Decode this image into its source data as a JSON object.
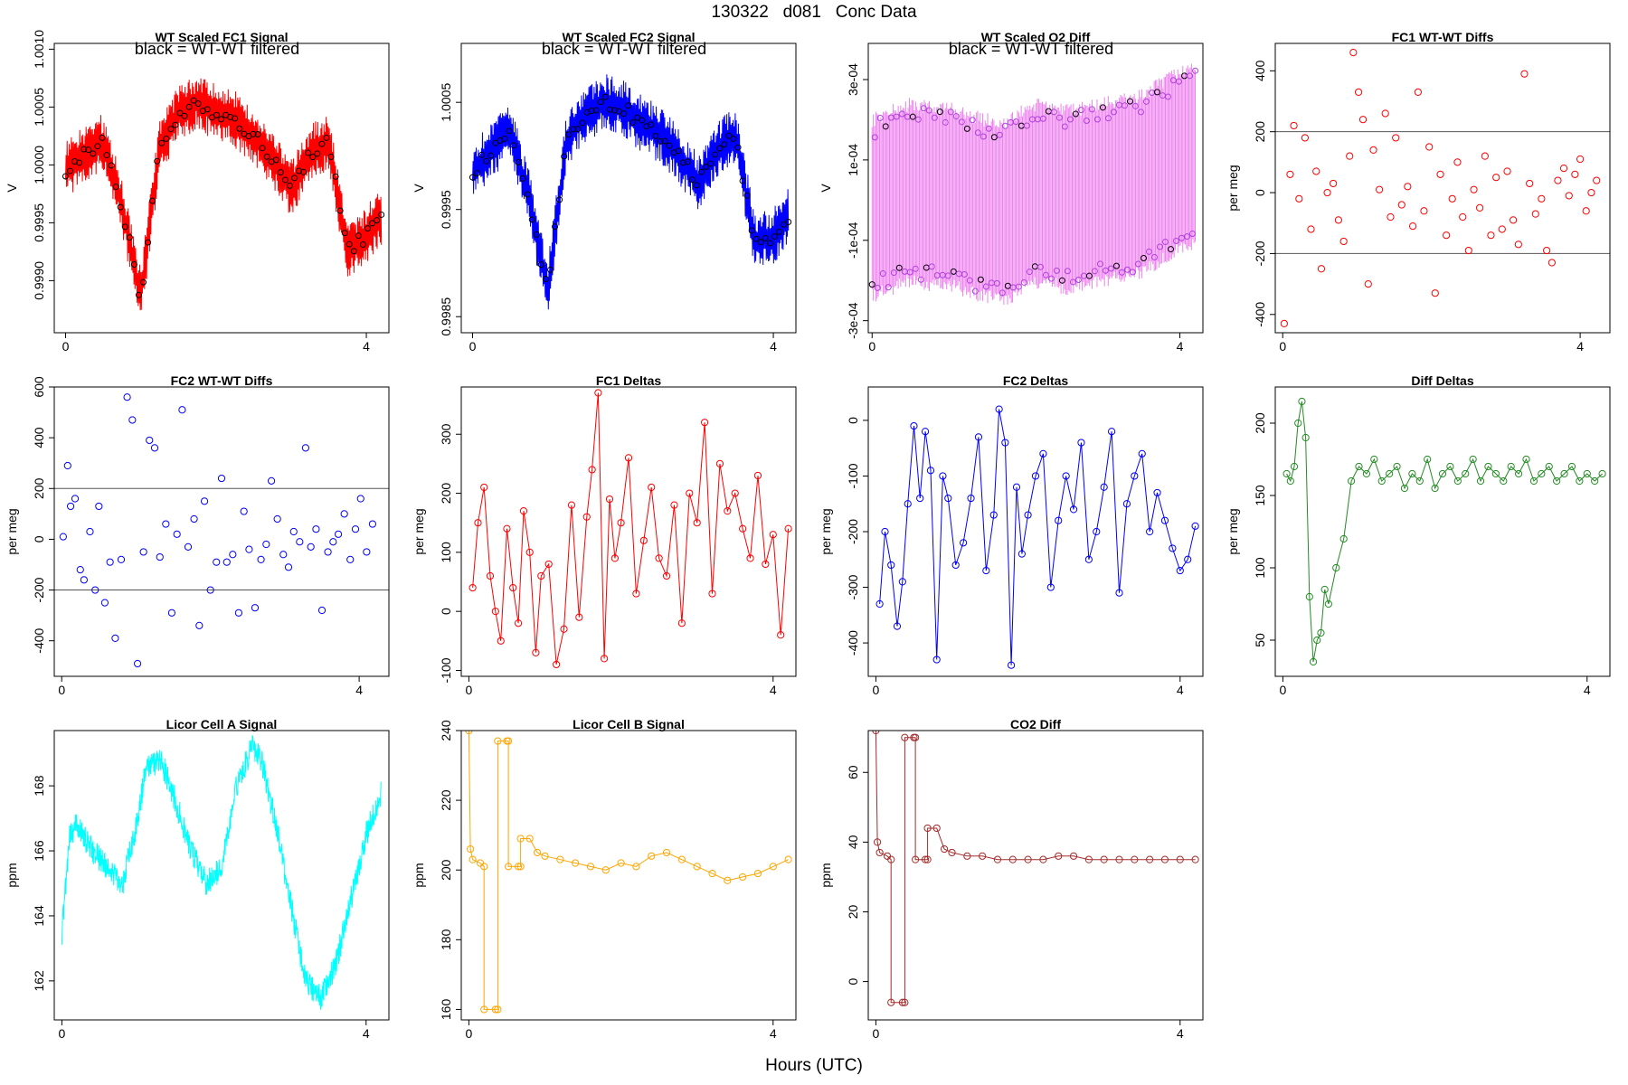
{
  "figure": {
    "title": "130322   d081   Conc Data",
    "xlabel": "Hours (UTC)"
  },
  "chart_data": [
    {
      "id": "p1",
      "type": "line",
      "title": "WT Scaled FC1 Signal",
      "note": "black = WT-WT filtered",
      "ylabel": "V",
      "color": "#ff0000",
      "style": "trace-points",
      "xlim": [
        -0.15,
        4.3
      ],
      "ylim": [
        0.99855,
        1.00105
      ],
      "xticks": [
        0,
        4
      ],
      "yticks": [
        0.999,
        0.9995,
        1.0,
        1.0005,
        1.001
      ],
      "ytick_labels": [
        "0.9990",
        "0.9995",
        "1.0000",
        "1.0005",
        "1.0010"
      ],
      "hlines": [],
      "x": [
        0,
        0.25,
        0.5,
        0.75,
        1.0,
        1.25,
        1.5,
        1.75,
        2.0,
        2.25,
        2.5,
        2.75,
        3.0,
        3.25,
        3.5,
        3.75,
        4.0,
        4.2
      ],
      "y": [
        0.99995,
        1.0001,
        1.0002,
        0.99965,
        0.99885,
        1.00015,
        1.00045,
        1.00055,
        1.00045,
        1.0004,
        1.00025,
        1.00005,
        0.9998,
        1.0001,
        1.0002,
        0.99925,
        0.9994,
        0.99955
      ]
    },
    {
      "id": "p2",
      "type": "line",
      "title": "WT Scaled FC2 Signal",
      "note": "black = WT-WT filtered",
      "ylabel": "V",
      "color": "#0000ff",
      "style": "trace-points",
      "xlim": [
        -0.15,
        4.3
      ],
      "ylim": [
        0.99835,
        1.00105
      ],
      "xticks": [
        0,
        4
      ],
      "yticks": [
        0.9985,
        0.9995,
        1.0005
      ],
      "ytick_labels": [
        "0.9985",
        "0.9995",
        "1.0005"
      ],
      "hlines": [],
      "x": [
        0,
        0.25,
        0.5,
        0.75,
        1.0,
        1.25,
        1.5,
        1.75,
        2.0,
        2.25,
        2.5,
        2.75,
        3.0,
        3.25,
        3.5,
        3.75,
        4.0,
        4.2
      ],
      "y": [
        0.99985,
        1.00005,
        1.00025,
        0.9996,
        0.99875,
        1.00015,
        1.0004,
        1.0005,
        1.00045,
        1.0003,
        1.0002,
        1.0,
        0.99975,
        1.00005,
        1.0002,
        0.9992,
        0.99925,
        0.99945
      ]
    },
    {
      "id": "p3",
      "type": "line",
      "title": "WT Scaled O2 Diff",
      "note": "black = WT-WT filtered",
      "ylabel": "V",
      "color": "#ee82ee",
      "style": "envelope",
      "xlim": [
        -0.05,
        4.3
      ],
      "ylim": [
        -0.00033,
        0.00039
      ],
      "xticks": [
        0,
        4
      ],
      "yticks": [
        -0.0003,
        -0.0001,
        0.0001,
        0.0003
      ],
      "ytick_labels": [
        "-3e-04",
        "-1e-04",
        "1e-04",
        "3e-04"
      ],
      "hlines": [],
      "x": [
        0,
        0.25,
        0.5,
        0.75,
        1.0,
        1.25,
        1.5,
        1.75,
        2.0,
        2.25,
        2.5,
        2.75,
        3.0,
        3.25,
        3.5,
        3.75,
        4.0,
        4.2
      ],
      "y": [
        -2e-05,
        0.0,
        2e-05,
        1e-05,
        1e-05,
        -1e-05,
        -2e-05,
        -3e-05,
        1e-05,
        2e-05,
        0.0,
        1e-05,
        2e-05,
        3e-05,
        4e-05,
        7e-05,
        0.0001,
        0.00011
      ]
    },
    {
      "id": "p4",
      "type": "scatter",
      "title": "FC1 WT-WT Diffs",
      "note": "",
      "ylabel": "per meg",
      "color": "#ff0000",
      "style": "points",
      "xlim": [
        -0.1,
        4.4
      ],
      "ylim": [
        -460,
        490
      ],
      "xticks": [
        0,
        4
      ],
      "yticks": [
        -400,
        -200,
        0,
        200,
        400
      ],
      "ytick_labels": [
        "-400",
        "-200",
        "0",
        "200",
        "400"
      ],
      "hlines": [
        200,
        -200
      ],
      "x": [
        0.02,
        0.1,
        0.15,
        0.22,
        0.3,
        0.38,
        0.45,
        0.52,
        0.6,
        0.68,
        0.75,
        0.82,
        0.9,
        0.95,
        1.02,
        1.08,
        1.15,
        1.22,
        1.3,
        1.38,
        1.45,
        1.52,
        1.6,
        1.68,
        1.75,
        1.82,
        1.9,
        1.97,
        2.05,
        2.12,
        2.2,
        2.28,
        2.35,
        2.42,
        2.5,
        2.57,
        2.65,
        2.72,
        2.8,
        2.87,
        2.95,
        3.02,
        3.1,
        3.17,
        3.25,
        3.32,
        3.4,
        3.48,
        3.55,
        3.62,
        3.7,
        3.78,
        3.85,
        3.93,
        4.0,
        4.08,
        4.15,
        4.22
      ],
      "y": [
        -430,
        60,
        220,
        -20,
        180,
        -120,
        70,
        -250,
        0,
        30,
        -90,
        -160,
        120,
        460,
        330,
        240,
        -300,
        140,
        10,
        260,
        -80,
        180,
        -40,
        20,
        -110,
        330,
        -60,
        150,
        -330,
        60,
        -140,
        -20,
        100,
        -80,
        -190,
        10,
        -50,
        120,
        -140,
        50,
        -120,
        70,
        -90,
        -170,
        390,
        30,
        -70,
        -20,
        -190,
        -230,
        40,
        80,
        -10,
        60,
        110,
        -60,
        0,
        40
      ]
    },
    {
      "id": "p5",
      "type": "scatter",
      "title": "FC2 WT-WT Diffs",
      "note": "",
      "ylabel": "per meg",
      "color": "#0000ff",
      "style": "points",
      "xlim": [
        -0.1,
        4.4
      ],
      "ylim": [
        -540,
        600
      ],
      "xticks": [
        0,
        4
      ],
      "yticks": [
        -400,
        -200,
        0,
        200,
        400,
        600
      ],
      "ytick_labels": [
        "-400",
        "-200",
        "0",
        "200",
        "400",
        "600"
      ],
      "hlines": [
        200,
        -200
      ],
      "x": [
        0.02,
        0.08,
        0.12,
        0.18,
        0.25,
        0.3,
        0.38,
        0.45,
        0.5,
        0.58,
        0.65,
        0.72,
        0.8,
        0.88,
        0.95,
        1.02,
        1.1,
        1.18,
        1.25,
        1.32,
        1.4,
        1.48,
        1.55,
        1.62,
        1.7,
        1.78,
        1.85,
        1.92,
        2.0,
        2.08,
        2.15,
        2.22,
        2.3,
        2.38,
        2.45,
        2.52,
        2.6,
        2.68,
        2.75,
        2.82,
        2.9,
        2.98,
        3.05,
        3.12,
        3.2,
        3.28,
        3.35,
        3.42,
        3.5,
        3.58,
        3.65,
        3.72,
        3.8,
        3.88,
        3.95,
        4.02,
        4.1,
        4.18
      ],
      "y": [
        10,
        290,
        130,
        160,
        -120,
        -160,
        30,
        -200,
        130,
        -250,
        -90,
        -390,
        -80,
        560,
        470,
        -490,
        -50,
        390,
        360,
        -70,
        60,
        -290,
        20,
        510,
        -30,
        80,
        -340,
        150,
        -200,
        -90,
        240,
        -90,
        -60,
        -290,
        110,
        -40,
        -270,
        -80,
        -20,
        230,
        80,
        -60,
        -110,
        30,
        -10,
        360,
        -30,
        40,
        -280,
        -50,
        -10,
        20,
        100,
        -80,
        40,
        160,
        -50,
        60
      ]
    },
    {
      "id": "p6",
      "type": "line",
      "title": "FC1 Deltas",
      "note": "",
      "ylabel": "per meg",
      "color": "#ff0000",
      "style": "line-points",
      "xlim": [
        -0.1,
        4.3
      ],
      "ylim": [
        -110,
        380
      ],
      "xticks": [
        0,
        4
      ],
      "yticks": [
        -100,
        0,
        100,
        200,
        300
      ],
      "ytick_labels": [
        "-100",
        "0",
        "100",
        "200",
        "300"
      ],
      "hlines": [],
      "x": [
        0.05,
        0.12,
        0.2,
        0.28,
        0.35,
        0.42,
        0.5,
        0.58,
        0.65,
        0.72,
        0.8,
        0.88,
        0.95,
        1.05,
        1.15,
        1.25,
        1.35,
        1.45,
        1.55,
        1.62,
        1.7,
        1.78,
        1.85,
        1.92,
        2.0,
        2.1,
        2.2,
        2.3,
        2.4,
        2.5,
        2.6,
        2.7,
        2.8,
        2.9,
        3.0,
        3.1,
        3.2,
        3.3,
        3.4,
        3.5,
        3.6,
        3.7,
        3.8,
        3.9,
        4.0,
        4.1,
        4.2
      ],
      "y": [
        40,
        150,
        210,
        60,
        0,
        -50,
        140,
        40,
        -20,
        170,
        100,
        -70,
        60,
        80,
        -90,
        -30,
        180,
        -10,
        160,
        240,
        370,
        -80,
        190,
        90,
        150,
        260,
        30,
        120,
        210,
        90,
        60,
        180,
        -20,
        200,
        150,
        320,
        30,
        250,
        170,
        200,
        140,
        90,
        230,
        80,
        130,
        -40,
        140
      ]
    },
    {
      "id": "p7",
      "type": "line",
      "title": "FC2 Deltas",
      "note": "",
      "ylabel": "per meg",
      "color": "#0000ff",
      "style": "line-points",
      "xlim": [
        -0.1,
        4.3
      ],
      "ylim": [
        -460,
        60
      ],
      "xticks": [
        0,
        4
      ],
      "yticks": [
        -400,
        -300,
        -200,
        -100,
        0
      ],
      "ytick_labels": [
        "-400",
        "-300",
        "-200",
        "-100",
        "0"
      ],
      "hlines": [],
      "x": [
        0.05,
        0.12,
        0.2,
        0.28,
        0.35,
        0.42,
        0.5,
        0.58,
        0.65,
        0.72,
        0.8,
        0.88,
        0.95,
        1.05,
        1.15,
        1.25,
        1.35,
        1.45,
        1.55,
        1.62,
        1.7,
        1.78,
        1.85,
        1.92,
        2.0,
        2.1,
        2.2,
        2.3,
        2.4,
        2.5,
        2.6,
        2.7,
        2.8,
        2.9,
        3.0,
        3.1,
        3.2,
        3.3,
        3.4,
        3.5,
        3.6,
        3.7,
        3.8,
        3.9,
        4.0,
        4.1,
        4.2
      ],
      "y": [
        -330,
        -200,
        -260,
        -370,
        -290,
        -150,
        -10,
        -140,
        -20,
        -90,
        -430,
        -100,
        -140,
        -260,
        -220,
        -140,
        -30,
        -270,
        -170,
        20,
        -40,
        -440,
        -120,
        -240,
        -170,
        -100,
        -60,
        -300,
        -180,
        -100,
        -160,
        -40,
        -250,
        -200,
        -120,
        -20,
        -310,
        -150,
        -100,
        -60,
        -200,
        -130,
        -180,
        -230,
        -270,
        -250,
        -190
      ]
    },
    {
      "id": "p8",
      "type": "line",
      "title": "Diff Deltas",
      "note": "",
      "ylabel": "per meg",
      "color": "#228b22",
      "style": "line-points",
      "xlim": [
        -0.1,
        4.3
      ],
      "ylim": [
        25,
        225
      ],
      "xticks": [
        0,
        4
      ],
      "yticks": [
        50,
        100,
        150,
        200
      ],
      "ytick_labels": [
        "50",
        "100",
        "150",
        "200"
      ],
      "hlines": [],
      "x": [
        0.05,
        0.1,
        0.15,
        0.2,
        0.25,
        0.3,
        0.35,
        0.4,
        0.45,
        0.5,
        0.55,
        0.6,
        0.7,
        0.8,
        0.9,
        1.0,
        1.1,
        1.2,
        1.3,
        1.4,
        1.5,
        1.6,
        1.7,
        1.8,
        1.9,
        2.0,
        2.1,
        2.2,
        2.3,
        2.4,
        2.5,
        2.6,
        2.7,
        2.8,
        2.9,
        3.0,
        3.1,
        3.2,
        3.3,
        3.4,
        3.5,
        3.6,
        3.7,
        3.8,
        3.9,
        4.0,
        4.1,
        4.2
      ],
      "y": [
        165,
        160,
        170,
        200,
        215,
        190,
        80,
        35,
        50,
        55,
        85,
        75,
        100,
        120,
        160,
        170,
        165,
        175,
        160,
        165,
        170,
        155,
        165,
        160,
        175,
        155,
        165,
        170,
        160,
        165,
        175,
        160,
        170,
        165,
        160,
        170,
        165,
        175,
        160,
        165,
        170,
        160,
        165,
        170,
        160,
        165,
        160,
        165
      ]
    },
    {
      "id": "p9",
      "type": "line",
      "title": "Licor Cell A Signal",
      "note": "",
      "ylabel": "ppm",
      "color": "#00ffff",
      "style": "noisy-line",
      "xlim": [
        -0.1,
        4.3
      ],
      "ylim": [
        160.8,
        169.7
      ],
      "xticks": [
        0,
        4
      ],
      "yticks": [
        162,
        164,
        166,
        168
      ],
      "ytick_labels": [
        "162",
        "164",
        "166",
        "168"
      ],
      "hlines": [],
      "x": [
        0.0,
        0.1,
        0.2,
        0.4,
        0.6,
        0.8,
        1.0,
        1.1,
        1.3,
        1.5,
        1.7,
        1.9,
        2.1,
        2.3,
        2.5,
        2.6,
        2.8,
        3.0,
        3.2,
        3.4,
        3.6,
        3.8,
        4.0,
        4.2
      ],
      "y": [
        163.5,
        166.5,
        166.8,
        166.0,
        165.5,
        165.0,
        167.0,
        168.5,
        168.8,
        167.5,
        166.0,
        165.0,
        165.5,
        168.0,
        169.2,
        169.0,
        167.0,
        164.5,
        162.0,
        161.5,
        162.5,
        164.5,
        166.5,
        167.8
      ]
    },
    {
      "id": "p10",
      "type": "line",
      "title": "Licor Cell B Signal",
      "note": "",
      "ylabel": "ppm",
      "color": "#ffa500",
      "style": "line-points",
      "xlim": [
        -0.1,
        4.3
      ],
      "ylim": [
        157,
        240
      ],
      "xticks": [
        0,
        4
      ],
      "yticks": [
        160,
        180,
        200,
        220,
        240
      ],
      "ytick_labels": [
        "160",
        "180",
        "200",
        "220",
        "240"
      ],
      "hlines": [],
      "x": [
        0.0,
        0.02,
        0.05,
        0.15,
        0.2,
        0.2,
        0.35,
        0.38,
        0.38,
        0.5,
        0.52,
        0.52,
        0.65,
        0.68,
        0.68,
        0.8,
        0.9,
        1.0,
        1.2,
        1.4,
        1.6,
        1.8,
        2.0,
        2.2,
        2.4,
        2.6,
        2.8,
        3.0,
        3.2,
        3.4,
        3.6,
        3.8,
        4.0,
        4.2
      ],
      "y": [
        240,
        206,
        203,
        202,
        201,
        160,
        160,
        160,
        237,
        237,
        237,
        201,
        201,
        201,
        209,
        209,
        205,
        204,
        203,
        202,
        201,
        200,
        202,
        201,
        204,
        205,
        203,
        201,
        199,
        197,
        198,
        199,
        201,
        203
      ]
    },
    {
      "id": "p11",
      "type": "line",
      "title": "CO2 Diff",
      "note": "",
      "ylabel": "ppm",
      "color": "#a52a2a",
      "style": "line-points",
      "xlim": [
        -0.1,
        4.3
      ],
      "ylim": [
        -11,
        72
      ],
      "xticks": [
        0,
        4
      ],
      "yticks": [
        0,
        20,
        40,
        60
      ],
      "ytick_labels": [
        "0",
        "20",
        "40",
        "60"
      ],
      "hlines": [],
      "x": [
        0.0,
        0.02,
        0.05,
        0.15,
        0.2,
        0.2,
        0.35,
        0.38,
        0.38,
        0.5,
        0.52,
        0.52,
        0.65,
        0.68,
        0.68,
        0.8,
        0.9,
        1.0,
        1.2,
        1.4,
        1.6,
        1.8,
        2.0,
        2.2,
        2.4,
        2.6,
        2.8,
        3.0,
        3.2,
        3.4,
        3.6,
        3.8,
        4.0,
        4.2
      ],
      "y": [
        72,
        40,
        37,
        36,
        35,
        -6,
        -6,
        -6,
        70,
        70,
        70,
        35,
        35,
        35,
        44,
        44,
        38,
        37,
        36,
        36,
        35,
        35,
        35,
        35,
        36,
        36,
        35,
        35,
        35,
        35,
        35,
        35,
        35,
        35
      ]
    }
  ]
}
